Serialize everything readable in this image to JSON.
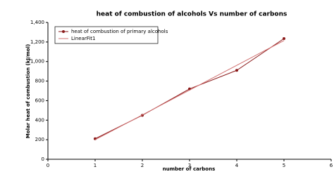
{
  "chart_data": {
    "type": "line",
    "title": "heat of combustion of alcohols Vs number of carbons",
    "x_label": "number of carbons",
    "y_label": "Molar heat of combustion (kJ/mol)",
    "series": [
      {
        "name": "heat of combustion of primary alcohols",
        "color": "#8b1a1a",
        "marker": true,
        "x": [
          1,
          2,
          3,
          4,
          5
        ],
        "values": [
          210,
          450,
          720,
          910,
          1235
        ]
      },
      {
        "name": "LinearFit1",
        "color": "#d07070",
        "marker": false,
        "x": [
          1,
          5
        ],
        "values": [
          200,
          1215
        ]
      }
    ],
    "xlim": [
      0,
      6
    ],
    "xticks": [
      0,
      1,
      2,
      3,
      4,
      5,
      6
    ],
    "ylim": [
      0,
      1400
    ],
    "yticks": [
      0,
      200,
      400,
      600,
      800,
      {
        "value": 1000,
        "label": "1,000"
      },
      {
        "value": 1200,
        "label": "1,200"
      },
      {
        "value": 1400,
        "label": "1,400"
      }
    ],
    "grid": false,
    "legend": "top-left"
  }
}
